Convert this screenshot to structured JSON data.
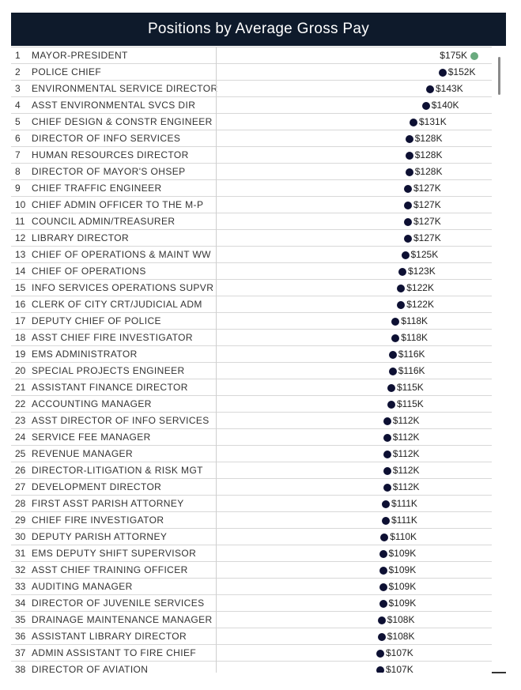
{
  "header": {
    "title": "Positions by Average Gross Pay"
  },
  "colors": {
    "header_bg": "#0e1a2b",
    "dot": "#0d1033",
    "highlight_dot": "#6aaa7e"
  },
  "chart_data": {
    "type": "scatter",
    "title": "Positions by Average Gross Pay",
    "highlight": "MAYOR-PRESIDENT",
    "rows": [
      {
        "rank": "1",
        "position": "MAYOR-PRESIDENT",
        "value": 175,
        "label": "$175K"
      },
      {
        "rank": "2",
        "position": "POLICE CHIEF",
        "value": 152,
        "label": "$152K"
      },
      {
        "rank": "3",
        "position": "ENVIRONMENTAL SERVICE DIRECTOR",
        "value": 143,
        "label": "$143K"
      },
      {
        "rank": "4",
        "position": "ASST ENVIRONMENTAL SVCS DIR",
        "value": 140,
        "label": "$140K"
      },
      {
        "rank": "5",
        "position": "CHIEF DESIGN & CONSTR ENGINEER",
        "value": 131,
        "label": "$131K"
      },
      {
        "rank": "6",
        "position": "DIRECTOR OF INFO SERVICES",
        "value": 128,
        "label": "$128K"
      },
      {
        "rank": "7",
        "position": "HUMAN RESOURCES DIRECTOR",
        "value": 128,
        "label": "$128K"
      },
      {
        "rank": "8",
        "position": "DIRECTOR OF MAYOR'S OHSEP",
        "value": 128,
        "label": "$128K"
      },
      {
        "rank": "9",
        "position": "CHIEF TRAFFIC ENGINEER",
        "value": 127,
        "label": "$127K"
      },
      {
        "rank": "10",
        "position": "CHIEF ADMIN OFFICER TO THE M-P",
        "value": 127,
        "label": "$127K"
      },
      {
        "rank": "11",
        "position": "COUNCIL ADMIN/TREASURER",
        "value": 127,
        "label": "$127K"
      },
      {
        "rank": "12",
        "position": "LIBRARY DIRECTOR",
        "value": 127,
        "label": "$127K"
      },
      {
        "rank": "13",
        "position": "CHIEF OF OPERATIONS & MAINT WW",
        "value": 125,
        "label": "$125K"
      },
      {
        "rank": "14",
        "position": "CHIEF OF OPERATIONS",
        "value": 123,
        "label": "$123K"
      },
      {
        "rank": "15",
        "position": "INFO SERVICES OPERATIONS SUPVR",
        "value": 122,
        "label": "$122K"
      },
      {
        "rank": "16",
        "position": "CLERK OF CITY CRT/JUDICIAL ADM",
        "value": 122,
        "label": "$122K"
      },
      {
        "rank": "17",
        "position": "DEPUTY CHIEF OF POLICE",
        "value": 118,
        "label": "$118K"
      },
      {
        "rank": "18",
        "position": "ASST CHIEF FIRE INVESTIGATOR",
        "value": 118,
        "label": "$118K"
      },
      {
        "rank": "19",
        "position": "EMS ADMINISTRATOR",
        "value": 116,
        "label": "$116K"
      },
      {
        "rank": "20",
        "position": "SPECIAL PROJECTS ENGINEER",
        "value": 116,
        "label": "$116K"
      },
      {
        "rank": "21",
        "position": "ASSISTANT FINANCE DIRECTOR",
        "value": 115,
        "label": "$115K"
      },
      {
        "rank": "22",
        "position": "ACCOUNTING MANAGER",
        "value": 115,
        "label": "$115K"
      },
      {
        "rank": "23",
        "position": "ASST DIRECTOR OF INFO SERVICES",
        "value": 112,
        "label": "$112K"
      },
      {
        "rank": "24",
        "position": "SERVICE FEE MANAGER",
        "value": 112,
        "label": "$112K"
      },
      {
        "rank": "25",
        "position": "REVENUE MANAGER",
        "value": 112,
        "label": "$112K"
      },
      {
        "rank": "26",
        "position": "DIRECTOR-LITIGATION & RISK MGT",
        "value": 112,
        "label": "$112K"
      },
      {
        "rank": "27",
        "position": "DEVELOPMENT DIRECTOR",
        "value": 112,
        "label": "$112K"
      },
      {
        "rank": "28",
        "position": "FIRST ASST PARISH ATTORNEY",
        "value": 111,
        "label": "$111K"
      },
      {
        "rank": "29",
        "position": "CHIEF FIRE INVESTIGATOR",
        "value": 111,
        "label": "$111K"
      },
      {
        "rank": "30",
        "position": "DEPUTY PARISH ATTORNEY",
        "value": 110,
        "label": "$110K"
      },
      {
        "rank": "31",
        "position": "EMS DEPUTY SHIFT SUPERVISOR",
        "value": 109,
        "label": "$109K"
      },
      {
        "rank": "32",
        "position": "ASST CHIEF TRAINING OFFICER",
        "value": 109,
        "label": "$109K"
      },
      {
        "rank": "33",
        "position": "AUDITING MANAGER",
        "value": 109,
        "label": "$109K"
      },
      {
        "rank": "34",
        "position": "DIRECTOR OF JUVENILE SERVICES",
        "value": 109,
        "label": "$109K"
      },
      {
        "rank": "35",
        "position": "DRAINAGE MAINTENANCE MANAGER",
        "value": 108,
        "label": "$108K"
      },
      {
        "rank": "36",
        "position": "ASSISTANT LIBRARY DIRECTOR",
        "value": 108,
        "label": "$108K"
      },
      {
        "rank": "37",
        "position": "ADMIN ASSISTANT TO FIRE CHIEF",
        "value": 107,
        "label": "$107K"
      },
      {
        "rank": "38",
        "position": "DIRECTOR OF AVIATION",
        "value": 107,
        "label": "$107K"
      }
    ]
  }
}
